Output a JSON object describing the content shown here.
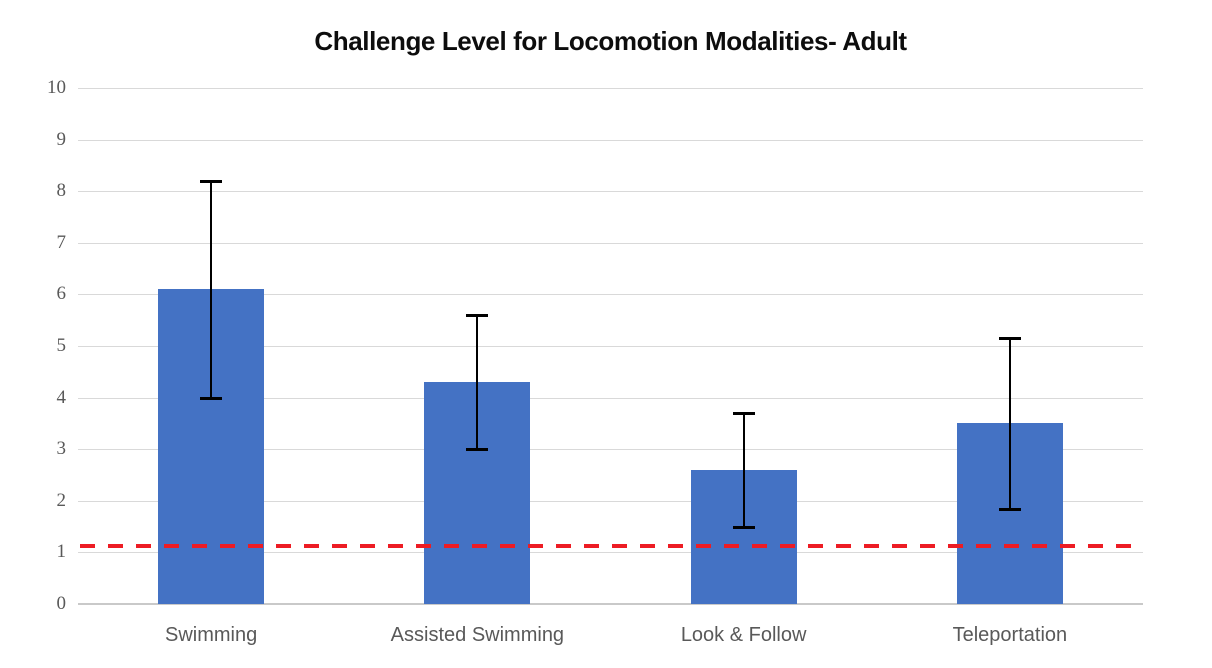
{
  "chart_data": {
    "type": "bar",
    "title": "Challenge Level for Locomotion Modalities- Adult",
    "categories": [
      "Swimming",
      "Assisted Swimming",
      "Look & Follow",
      "Teleportation"
    ],
    "values": [
      6.1,
      4.3,
      2.6,
      3.5
    ],
    "error_upper": [
      8.2,
      5.6,
      3.7,
      5.15
    ],
    "error_lower": [
      4.0,
      3.0,
      1.5,
      1.85
    ],
    "reference_line": {
      "value": 1.1,
      "style": "dashed",
      "color": "#ed1c24"
    },
    "ylim": [
      0,
      10
    ],
    "yticks": [
      0,
      1,
      2,
      3,
      4,
      5,
      6,
      7,
      8,
      9,
      10
    ],
    "xlabel": "",
    "ylabel": "",
    "grid": true,
    "legend": "none",
    "bar_color": "#4472c4",
    "error_bar_color": "#000000",
    "gridline_color": "#d9d9d9",
    "tick_label_color": "#595959",
    "title_color": "#0d0d0d",
    "background_color": "#ffffff"
  }
}
